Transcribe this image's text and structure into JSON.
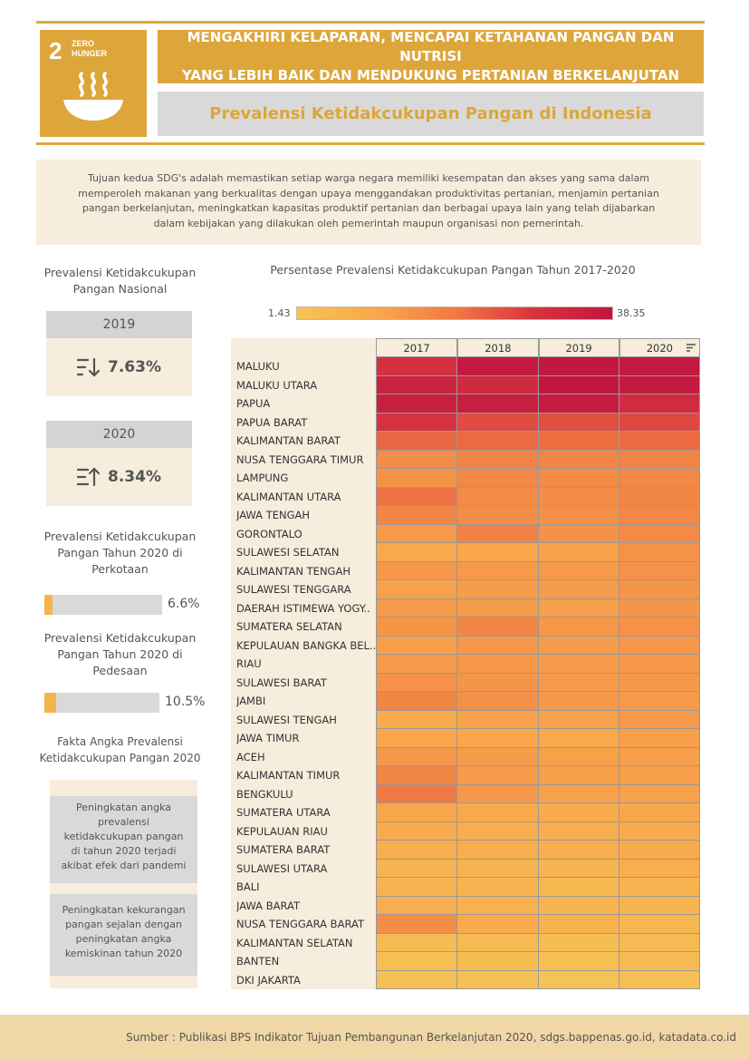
{
  "sdg": {
    "number": "2",
    "name_line1": "ZERO",
    "name_line2": "HUNGER",
    "icon": "bowl-icon",
    "color": "#dda63a"
  },
  "header": {
    "title_line1": "MENGAKHIRI KELAPARAN, MENCAPAI KETAHANAN PANGAN DAN NUTRISI",
    "title_line2": "YANG LEBIH BAIK DAN MENDUKUNG PERTANIAN BERKELANJUTAN",
    "subtitle": "Prevalensi Ketidakcukupan Pangan di Indonesia"
  },
  "intro": {
    "text": "Tujuan kedua SDG's adalah memastikan setiap warga negara memiliki kesempatan dan akses yang sama dalam memperoleh makanan yang berkualitas dengan upaya menggandakan produktivitas pertanian, menjamin pertanian pangan berkelanjutan, meningkatkan kapasitas produktif pertanian dan berbagai upaya lain yang telah dijabarkan dalam kebijakan yang dilakukan oleh pemerintah maupun organisasi non pemerintah."
  },
  "national": {
    "label_line1": "Prevalensi Ketidakcukupan",
    "label_line2": "Pangan Nasional",
    "cards": [
      {
        "year": "2019",
        "icon": "sort-descending-icon",
        "value": "7.63%"
      },
      {
        "year": "2020",
        "icon": "sort-ascending-icon",
        "value": "8.34%"
      }
    ]
  },
  "urban": {
    "label_line1": "Prevalensi Ketidakcukupan",
    "label_line2": "Pangan Tahun 2020 di",
    "label_line3": "Perkotaan",
    "value": "6.6%",
    "percent": 6.6
  },
  "rural": {
    "label_line1": "Prevalensi Ketidakcukupan",
    "label_line2": "Pangan Tahun 2020 di",
    "label_line3": "Pedesaan",
    "value": "10.5%",
    "percent": 10.5
  },
  "facts": {
    "label_line1": "Fakta Angka Prevalensi",
    "label_line2": "Ketidakcukupan Pangan 2020",
    "items": [
      {
        "l1": "Peningkatan angka",
        "l2": "prevalensi",
        "l3": "ketidakcukupan pangan",
        "l4": "di tahun 2020 terjadi",
        "l5": "akibat efek dari pandemi"
      },
      {
        "l1": "Peningkatan kekurangan",
        "l2": "pangan sejalan dengan",
        "l3": "peningkatan angka",
        "l4": "kemiskinan tahun 2020"
      }
    ]
  },
  "chart_data": {
    "type": "heatmap",
    "title": "Persentase Prevalensi Ketidakcukupan Pangan Tahun 2017-2020",
    "legend_min": "1.43",
    "legend_max": "38.35",
    "min": 1.43,
    "max": 38.35,
    "columns": [
      "2017",
      "2018",
      "2019",
      "2020"
    ],
    "colors": {
      "low": "#f5c355",
      "mid1": "#f9a84c",
      "mid2": "#f07a43",
      "mid3": "#d8343f",
      "high": "#c01640"
    },
    "rows": [
      {
        "name": "MALUKU",
        "values": [
          30.5,
          37.0,
          38.0,
          37.5
        ]
      },
      {
        "name": "MALUKU UTARA",
        "values": [
          34.5,
          32.5,
          38.35,
          37.0
        ]
      },
      {
        "name": "PAPUA",
        "values": [
          35.5,
          35.5,
          36.5,
          32.0
        ]
      },
      {
        "name": "PAPUA BARAT",
        "values": [
          30.0,
          26.0,
          25.5,
          26.5
        ]
      },
      {
        "name": "KALIMANTAN BARAT",
        "values": [
          22.5,
          22.0,
          21.5,
          22.0
        ]
      },
      {
        "name": "NUSA TENGGARA TIMUR",
        "values": [
          16.0,
          18.0,
          17.5,
          18.0
        ]
      },
      {
        "name": "LAMPUNG",
        "values": [
          15.0,
          17.0,
          16.5,
          17.0
        ]
      },
      {
        "name": "KALIMANTAN UTARA",
        "values": [
          21.0,
          16.5,
          16.0,
          17.5
        ]
      },
      {
        "name": "JAWA TENGAH",
        "values": [
          17.5,
          16.0,
          15.5,
          17.0
        ]
      },
      {
        "name": "GORONTALO",
        "values": [
          13.5,
          18.5,
          15.5,
          16.5
        ]
      },
      {
        "name": "SULAWESI SELATAN",
        "values": [
          10.5,
          11.0,
          12.0,
          15.0
        ]
      },
      {
        "name": "KALIMANTAN TENGAH",
        "values": [
          14.0,
          13.5,
          13.5,
          15.0
        ]
      },
      {
        "name": "SULAWESI TENGGARA",
        "values": [
          12.0,
          13.0,
          13.0,
          14.5
        ]
      },
      {
        "name": "DAERAH ISTIMEWA YOGY..",
        "values": [
          13.5,
          13.0,
          12.5,
          14.5
        ]
      },
      {
        "name": "SUMATERA SELATAN",
        "values": [
          14.5,
          17.5,
          14.0,
          15.0
        ]
      },
      {
        "name": "KEPULAUAN BANGKA BEL..",
        "values": [
          12.5,
          14.0,
          13.0,
          14.0
        ]
      },
      {
        "name": "RIAU",
        "values": [
          13.5,
          14.0,
          13.5,
          14.0
        ]
      },
      {
        "name": "SULAWESI BARAT",
        "values": [
          15.0,
          14.5,
          13.5,
          14.0
        ]
      },
      {
        "name": "JAMBI",
        "values": [
          17.5,
          15.5,
          14.0,
          13.5
        ]
      },
      {
        "name": "SULAWESI TENGAH",
        "values": [
          10.0,
          12.0,
          12.0,
          13.5
        ]
      },
      {
        "name": "JAWA TIMUR",
        "values": [
          11.0,
          11.0,
          10.5,
          12.5
        ]
      },
      {
        "name": "ACEH",
        "values": [
          14.0,
          13.0,
          12.0,
          12.5
        ]
      },
      {
        "name": "KALIMANTAN TIMUR",
        "values": [
          17.5,
          13.0,
          12.5,
          12.5
        ]
      },
      {
        "name": "BENGKULU",
        "values": [
          20.0,
          14.0,
          12.0,
          12.0
        ]
      },
      {
        "name": "SUMATERA UTARA",
        "values": [
          11.0,
          10.5,
          10.0,
          11.0
        ]
      },
      {
        "name": "KEPULAUAN RIAU",
        "values": [
          9.5,
          9.0,
          9.0,
          10.0
        ]
      },
      {
        "name": "SUMATERA BARAT",
        "values": [
          9.0,
          8.5,
          8.5,
          9.5
        ]
      },
      {
        "name": "SULAWESI UTARA",
        "values": [
          7.0,
          7.0,
          6.5,
          8.5
        ]
      },
      {
        "name": "BALI",
        "values": [
          7.0,
          6.5,
          5.5,
          7.0
        ]
      },
      {
        "name": "JAWA BARAT",
        "values": [
          9.0,
          7.5,
          6.5,
          6.5
        ]
      },
      {
        "name": "NUSA TENGGARA BARAT",
        "values": [
          16.0,
          10.0,
          7.5,
          6.0
        ]
      },
      {
        "name": "KALIMANTAN SELATAN",
        "values": [
          4.0,
          4.5,
          3.5,
          5.0
        ]
      },
      {
        "name": "BANTEN",
        "values": [
          3.0,
          3.5,
          3.0,
          4.0
        ]
      },
      {
        "name": "DKI JAKARTA",
        "values": [
          2.0,
          2.0,
          1.43,
          3.0
        ]
      }
    ]
  },
  "footer": {
    "source": "Sumber : Publikasi BPS Indikator Tujuan Pembangunan Berkelanjutan 2020, sdgs.bappenas.go.id, katadata.co.id"
  }
}
